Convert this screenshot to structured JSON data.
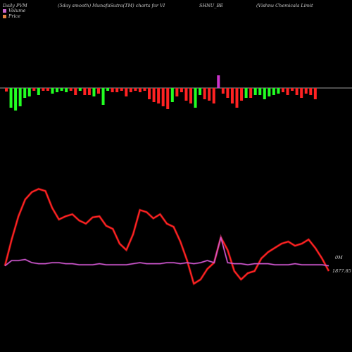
{
  "header": {
    "left": "Daily PVM",
    "middle": "(5day smooth) MunafaSutra(TM) charts for VI",
    "symbol": "SHNU_BE",
    "right": "(Vishnu Chemicals Limit"
  },
  "legend": {
    "volume_label": "Volume",
    "price_label": "Price",
    "volume_color": "#cc66cc",
    "price_color": "#e08040"
  },
  "annotations": {
    "volume_value": "0M",
    "price_value": "1877.85"
  },
  "colors": {
    "background": "#000000",
    "bar_up": "#22ff22",
    "bar_down": "#ff2222",
    "bar_peak": "#cc33cc",
    "price_line": "#ff2222",
    "volume_line": "#cc55cc",
    "zero_line": "#cfcfcf"
  },
  "chart_data": {
    "type": "bar+line",
    "bars": {
      "description": "smoothed PVM oscillator bars around zero line",
      "values": [
        -5,
        -28,
        -32,
        -26,
        -14,
        -12,
        -4,
        -10,
        -4,
        -4,
        -8,
        -6,
        -4,
        -6,
        -4,
        -10,
        -4,
        -10,
        -10,
        -12,
        -8,
        -24,
        -4,
        -6,
        -6,
        -4,
        -12,
        -6,
        -4,
        -6,
        -4,
        -16,
        -20,
        -22,
        -26,
        -30,
        -20,
        -12,
        -6,
        -18,
        -22,
        -28,
        -10,
        -16,
        -18,
        -22,
        18,
        -8,
        -14,
        -22,
        -28,
        -18,
        -14,
        -14,
        -10,
        -10,
        -16,
        -12,
        -10,
        -8,
        -6,
        -10,
        -4,
        -10,
        -14,
        -8,
        -10,
        -16
      ],
      "colors": [
        "red",
        "green",
        "green",
        "green",
        "green",
        "green",
        "red",
        "green",
        "red",
        "red",
        "green",
        "green",
        "green",
        "green",
        "red",
        "red",
        "green",
        "red",
        "red",
        "green",
        "red",
        "green",
        "green",
        "red",
        "red",
        "red",
        "red",
        "red",
        "red",
        "red",
        "red",
        "red",
        "red",
        "red",
        "red",
        "red",
        "green",
        "red",
        "red",
        "red",
        "red",
        "green",
        "green",
        "red",
        "red",
        "red",
        "peak",
        "red",
        "red",
        "red",
        "red",
        "red",
        "green",
        "red",
        "green",
        "green",
        "green",
        "green",
        "green",
        "green",
        "red",
        "red",
        "red",
        "red",
        "red",
        "red",
        "red",
        "red"
      ]
    },
    "series": [
      {
        "name": "Price",
        "values": [
          0.15,
          0.4,
          0.62,
          0.78,
          0.85,
          0.88,
          0.86,
          0.7,
          0.59,
          0.62,
          0.64,
          0.58,
          0.55,
          0.61,
          0.62,
          0.53,
          0.5,
          0.36,
          0.3,
          0.45,
          0.68,
          0.66,
          0.6,
          0.64,
          0.55,
          0.52,
          0.38,
          0.2,
          -0.02,
          0.02,
          0.12,
          0.18,
          0.42,
          0.3,
          0.1,
          0.02,
          0.08,
          0.1,
          0.22,
          0.28,
          0.32,
          0.36,
          0.38,
          0.34,
          0.36,
          0.4,
          0.32,
          0.22,
          0.1
        ]
      },
      {
        "name": "Volume",
        "values": [
          0.15,
          0.2,
          0.2,
          0.21,
          0.18,
          0.17,
          0.17,
          0.18,
          0.18,
          0.17,
          0.17,
          0.16,
          0.16,
          0.16,
          0.17,
          0.16,
          0.16,
          0.16,
          0.16,
          0.17,
          0.18,
          0.17,
          0.17,
          0.17,
          0.18,
          0.18,
          0.17,
          0.18,
          0.17,
          0.18,
          0.2,
          0.18,
          0.42,
          0.18,
          0.17,
          0.17,
          0.16,
          0.17,
          0.17,
          0.17,
          0.16,
          0.16,
          0.16,
          0.17,
          0.16,
          0.16,
          0.16,
          0.16,
          0.15
        ]
      }
    ],
    "legend_position": "top-left",
    "grid": false
  }
}
